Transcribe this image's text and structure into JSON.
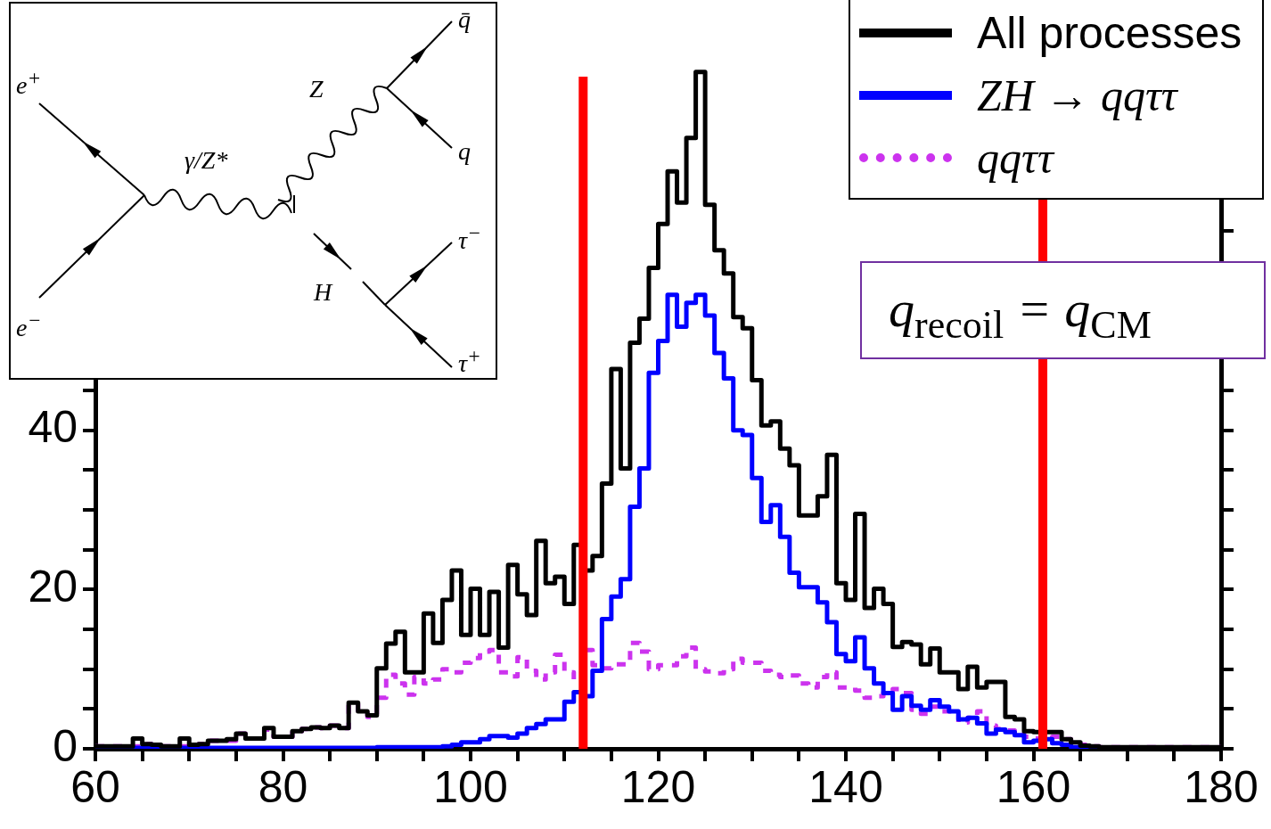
{
  "chart_data": {
    "type": "histogram",
    "legend": "top right",
    "grid": false,
    "bins": [
      60,
      61,
      62,
      63,
      64,
      65,
      66,
      67,
      68,
      69,
      70,
      71,
      72,
      73,
      74,
      75,
      76,
      77,
      78,
      79,
      80,
      81,
      82,
      83,
      84,
      85,
      86,
      87,
      88,
      89,
      90,
      91,
      92,
      93,
      94,
      95,
      96,
      97,
      98,
      99,
      100,
      101,
      102,
      103,
      104,
      105,
      106,
      107,
      108,
      109,
      110,
      111,
      112,
      113,
      114,
      115,
      116,
      117,
      118,
      119,
      120,
      121,
      122,
      123,
      124,
      125,
      126,
      127,
      128,
      129,
      130,
      131,
      132,
      133,
      134,
      135,
      136,
      137,
      138,
      139,
      140,
      141,
      142,
      143,
      144,
      145,
      146,
      147,
      148,
      149,
      150,
      151,
      152,
      153,
      154,
      155,
      156,
      157,
      158,
      159,
      160,
      161,
      162,
      163,
      164,
      165,
      166,
      167,
      168,
      169,
      170,
      171,
      172,
      173,
      174,
      175,
      176,
      177,
      178,
      179,
      180
    ],
    "series": [
      {
        "name": "All processes",
        "color": "#000000",
        "line_style": "solid",
        "values": [
          0.3,
          0.3,
          0.3,
          0.3,
          1.3,
          0.6,
          0.5,
          0.3,
          0.3,
          1.3,
          0.5,
          0.6,
          1,
          1,
          1.2,
          1.9,
          1.3,
          1.3,
          2.6,
          1.5,
          1.5,
          2.2,
          2.5,
          2.7,
          2.6,
          2.9,
          2.6,
          5.8,
          4.7,
          4.2,
          10.1,
          13.2,
          14.7,
          9.6,
          9.6,
          17,
          13.3,
          18.7,
          22.4,
          14.3,
          20.1,
          14.3,
          19.7,
          12.7,
          23.1,
          19.4,
          16.8,
          26.1,
          20.8,
          21.6,
          18.2,
          25.6,
          22.4,
          24.2,
          33.3,
          47.7,
          35.2,
          51,
          54,
          60.4,
          65.9,
          72.5,
          68.6,
          76.7,
          85,
          68.3,
          62.6,
          59.7,
          54.2,
          52.8,
          46.3,
          40.6,
          41.1,
          37.7,
          35.6,
          29.3,
          29.3,
          31.7,
          36.9,
          20.8,
          18.7,
          29.5,
          17.7,
          20.1,
          18.2,
          12.8,
          13.4,
          13.1,
          10.6,
          12.6,
          9.6,
          9.6,
          7.5,
          10.3,
          7.7,
          8.4,
          8.4,
          4,
          3.7,
          2.2,
          2.1,
          2.1,
          2.1,
          1.2,
          0.8,
          0.4,
          0.3,
          0.2,
          0.2,
          0.2,
          0.2,
          0.2,
          0.2,
          0.2,
          0.2,
          0.2,
          0.2,
          0.2,
          0.2,
          0.2
        ]
      },
      {
        "name": "ZH → qqττ",
        "color": "#0000ff",
        "line_style": "solid",
        "values": [
          0.1,
          0.1,
          0.1,
          0.1,
          0.1,
          0.1,
          0.1,
          0.1,
          0.1,
          0.1,
          0.1,
          0.1,
          0.1,
          0.1,
          0.1,
          0.1,
          0.1,
          0.1,
          0.1,
          0.1,
          0.1,
          0.1,
          0.1,
          0.1,
          0.1,
          0.1,
          0.1,
          0.1,
          0.1,
          0.1,
          0.2,
          0.2,
          0.2,
          0.2,
          0.2,
          0.2,
          0.2,
          0.3,
          0.5,
          0.8,
          0.8,
          1.2,
          1.6,
          1.6,
          1.4,
          1.9,
          2.6,
          3.1,
          3.7,
          3.7,
          5.9,
          7.1,
          6.6,
          9.8,
          16.3,
          19.1,
          21.3,
          30.4,
          35.2,
          47.2,
          51.2,
          57,
          53,
          56,
          57,
          54.4,
          49.7,
          46.5,
          40,
          39.4,
          34,
          28.5,
          30.6,
          26.6,
          22.1,
          20.3,
          20.3,
          18.4,
          15.9,
          11.9,
          11,
          14,
          10.1,
          8.2,
          7,
          4.9,
          6.6,
          5.4,
          4.9,
          6.1,
          5.3,
          4.7,
          3.7,
          3.9,
          3.2,
          1.9,
          2.4,
          2.1,
          1.7,
          0.8,
          1,
          1.2,
          0.7,
          0.5,
          0.2,
          0.2,
          0.1,
          0.1,
          0.1,
          0.1,
          0.1,
          0.1,
          0.1,
          0.1,
          0.1,
          0.1,
          0.1,
          0.1,
          0.1,
          0.1
        ]
      },
      {
        "name": "qqττ",
        "color": "#cc33ee",
        "line_style": "dotted",
        "values": [
          0.3,
          0.3,
          0.3,
          0.3,
          0.3,
          0.6,
          0.5,
          0.3,
          0.3,
          0.3,
          0.5,
          0.6,
          1,
          1,
          1,
          1.9,
          1.3,
          1.3,
          2.4,
          1.5,
          1.5,
          2.2,
          2.5,
          2.7,
          2.6,
          2.9,
          2.6,
          5.6,
          4.5,
          4,
          6.4,
          9.3,
          8.2,
          6.8,
          9,
          8.2,
          8.7,
          10,
          9.6,
          10.8,
          11.4,
          12.2,
          12.4,
          9.6,
          9.1,
          11.5,
          9.8,
          8.7,
          9.6,
          11.8,
          9.6,
          8.5,
          12.4,
          10.5,
          10.1,
          10.6,
          10.6,
          13.3,
          12.2,
          10,
          10.5,
          10.5,
          11.6,
          12.7,
          10,
          9.7,
          9.5,
          10,
          11.3,
          10.8,
          10.8,
          9.8,
          9.3,
          9,
          9.2,
          8.2,
          7.7,
          9,
          9.6,
          7.7,
          7.7,
          7.3,
          6.4,
          6.6,
          7.3,
          7.5,
          7,
          4.9,
          4.4,
          5.3,
          4.7,
          4.2,
          3.3,
          3.9,
          4.7,
          2.9,
          2.5,
          2.3,
          2.1,
          1.5,
          1.3,
          1.2,
          1.5,
          1.2,
          0.8,
          0.5,
          0.3,
          0.2,
          0.2,
          0.2,
          0.2,
          0.2,
          0.2,
          0.2,
          0.2,
          0.2,
          0.2,
          0.2,
          0.2,
          0.2
        ]
      }
    ],
    "xlim": [
      60,
      180
    ],
    "xticks": [
      60,
      {
        "value": 65,
        "label": null
      },
      {
        "value": 70,
        "label": null
      },
      {
        "value": 75,
        "label": null
      },
      80,
      {
        "value": 85,
        "label": null
      },
      {
        "value": 90,
        "label": null
      },
      {
        "value": 95,
        "label": null
      },
      100,
      {
        "value": 105,
        "label": null
      },
      {
        "value": 110,
        "label": null
      },
      {
        "value": 115,
        "label": null
      },
      120,
      {
        "value": 125,
        "label": null
      },
      {
        "value": 130,
        "label": null
      },
      {
        "value": 135,
        "label": null
      },
      140,
      {
        "value": 145,
        "label": null
      },
      {
        "value": 150,
        "label": null
      },
      {
        "value": 155,
        "label": null
      },
      160,
      {
        "value": 165,
        "label": null
      },
      {
        "value": 170,
        "label": null
      },
      {
        "value": 175,
        "label": null
      },
      180
    ],
    "ylim": [
      0,
      90
    ],
    "yticks": [
      0,
      {
        "value": 5,
        "label": null
      },
      {
        "value": 10,
        "label": null
      },
      {
        "value": 15,
        "label": null
      },
      20,
      {
        "value": 25,
        "label": null
      },
      {
        "value": 30,
        "label": null
      },
      {
        "value": 35,
        "label": null
      },
      40,
      {
        "value": 45,
        "label": null
      },
      {
        "value": 50,
        "label": null
      },
      {
        "value": 55,
        "label": null
      },
      {
        "value": 60,
        "label": null
      },
      {
        "value": 65,
        "label": null
      },
      {
        "value": 70,
        "label": null
      },
      {
        "value": 75,
        "label": null
      },
      {
        "value": 80,
        "label": null
      },
      {
        "value": 85,
        "label": null
      }
    ],
    "ref_lines": [
      {
        "axis": "x",
        "value": 112,
        "color": "#ff0000"
      },
      {
        "axis": "x",
        "value": 161,
        "color": "#ff0000"
      }
    ],
    "annotations": [
      "q$_{recoil}$ = q$_{CM}$",
      "e$^{+}$",
      "e$^{−}$",
      "γ/Z*",
      "Z",
      "H",
      "q̄",
      "q",
      "τ$^{−}$",
      "τ$^{+}$"
    ]
  }
}
